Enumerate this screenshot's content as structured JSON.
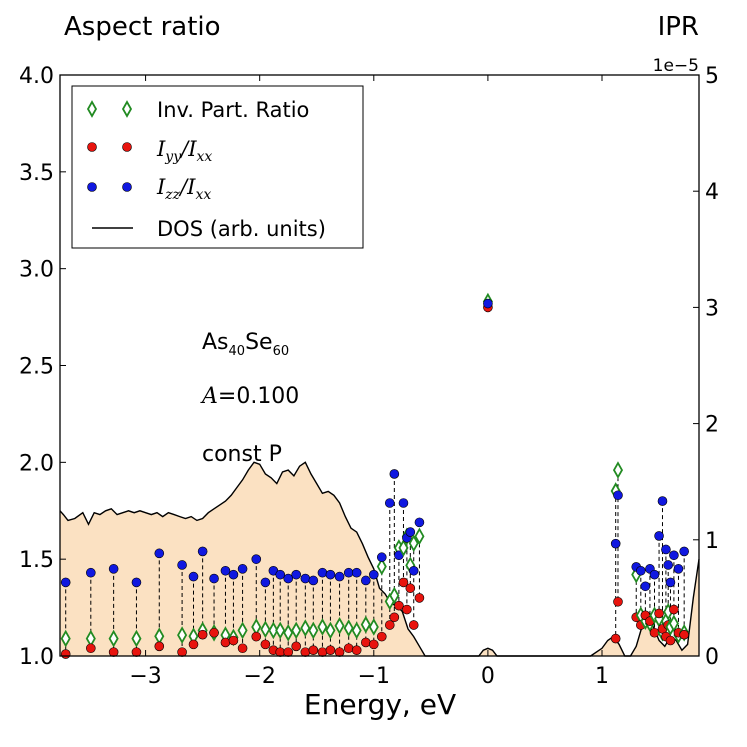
{
  "chart_data": {
    "type": "scatter",
    "title_left": "Aspect ratio",
    "title_right": "IPR",
    "xlabel": "Energy, eV",
    "xlim": [
      -3.75,
      1.85
    ],
    "ylim_left": [
      1.0,
      4.0
    ],
    "ylim_right": [
      0,
      5
    ],
    "right_axis_offset": "1e−5",
    "x_ticks": [
      -3,
      -2,
      -1,
      0,
      1
    ],
    "x_tick_labels": [
      "−3",
      "−2",
      "−1",
      "0",
      "1"
    ],
    "y_left_ticks": [
      1.0,
      1.5,
      2.0,
      2.5,
      3.0,
      3.5,
      4.0
    ],
    "y_left_tick_labels": [
      "1.0",
      "1.5",
      "2.0",
      "2.5",
      "3.0",
      "3.5",
      "4.0"
    ],
    "y_right_ticks": [
      0,
      1,
      2,
      3,
      4,
      5
    ],
    "y_right_tick_labels": [
      "0",
      "1",
      "2",
      "3",
      "4",
      "5"
    ],
    "annotations": {
      "material_base1": "As",
      "material_sub1": "40",
      "material_base2": "Se",
      "material_sub2": "60",
      "amp_var": "A",
      "amp_value": "=0.100",
      "condition": "const P"
    },
    "legend": {
      "position": "top-left",
      "ipr_label": "Inv. Part. Ratio",
      "iyy_var1": "I",
      "iyy_sub1": "yy",
      "iyy_slash": "/",
      "iyy_var2": "I",
      "iyy_sub2": "xx",
      "izz_var1": "I",
      "izz_sub1": "zz",
      "izz_slash": "/",
      "izz_var2": "I",
      "izz_sub2": "xx",
      "dos_label": "DOS (arb. units)"
    },
    "colors": {
      "ipr": "#228B22",
      "iyy": "#e8140e",
      "izz": "#1018e0",
      "dos_fill": "#fbe1c2",
      "dos_line": "#000000"
    },
    "states": [
      {
        "e": -3.7,
        "ipr": 0.15,
        "iyy": 1.01,
        "izz": 1.38
      },
      {
        "e": -3.48,
        "ipr": 0.15,
        "iyy": 1.04,
        "izz": 1.43
      },
      {
        "e": -3.28,
        "ipr": 0.15,
        "iyy": 1.02,
        "izz": 1.45
      },
      {
        "e": -3.08,
        "ipr": 0.15,
        "iyy": 1.02,
        "izz": 1.38
      },
      {
        "e": -2.88,
        "ipr": 0.17,
        "iyy": 1.05,
        "izz": 1.53
      },
      {
        "e": -2.68,
        "ipr": 0.18,
        "iyy": 1.02,
        "izz": 1.47
      },
      {
        "e": -2.58,
        "ipr": 0.17,
        "iyy": 1.06,
        "izz": 1.41
      },
      {
        "e": -2.5,
        "ipr": 0.22,
        "iyy": 1.11,
        "izz": 1.54
      },
      {
        "e": -2.4,
        "ipr": 0.2,
        "iyy": 1.12,
        "izz": 1.4
      },
      {
        "e": -2.3,
        "ipr": 0.18,
        "iyy": 1.07,
        "izz": 1.44
      },
      {
        "e": -2.23,
        "ipr": 0.16,
        "iyy": 1.08,
        "izz": 1.42
      },
      {
        "e": -2.15,
        "ipr": 0.22,
        "iyy": 1.04,
        "izz": 1.45
      },
      {
        "e": -2.03,
        "ipr": 0.25,
        "iyy": 1.1,
        "izz": 1.5
      },
      {
        "e": -1.95,
        "ipr": 0.23,
        "iyy": 1.06,
        "izz": 1.38
      },
      {
        "e": -1.88,
        "ipr": 0.22,
        "iyy": 1.03,
        "izz": 1.44
      },
      {
        "e": -1.82,
        "ipr": 0.22,
        "iyy": 1.02,
        "izz": 1.42
      },
      {
        "e": -1.75,
        "ipr": 0.2,
        "iyy": 1.02,
        "izz": 1.4
      },
      {
        "e": -1.68,
        "ipr": 0.22,
        "iyy": 1.05,
        "izz": 1.42
      },
      {
        "e": -1.6,
        "ipr": 0.24,
        "iyy": 1.02,
        "izz": 1.4
      },
      {
        "e": -1.53,
        "ipr": 0.22,
        "iyy": 1.03,
        "izz": 1.39
      },
      {
        "e": -1.45,
        "ipr": 0.25,
        "iyy": 1.02,
        "izz": 1.43
      },
      {
        "e": -1.38,
        "ipr": 0.22,
        "iyy": 1.03,
        "izz": 1.42
      },
      {
        "e": -1.3,
        "ipr": 0.26,
        "iyy": 1.02,
        "izz": 1.41
      },
      {
        "e": -1.22,
        "ipr": 0.24,
        "iyy": 1.04,
        "izz": 1.43
      },
      {
        "e": -1.15,
        "ipr": 0.22,
        "iyy": 1.03,
        "izz": 1.43
      },
      {
        "e": -1.07,
        "ipr": 0.27,
        "iyy": 1.07,
        "izz": 1.39
      },
      {
        "e": -1.0,
        "ipr": 0.25,
        "iyy": 1.06,
        "izz": 1.42
      },
      {
        "e": -0.93,
        "ipr": 0.77,
        "iyy": 1.1,
        "izz": 1.51
      },
      {
        "e": -0.86,
        "ipr": 0.47,
        "iyy": 1.16,
        "izz": 1.79
      },
      {
        "e": -0.82,
        "ipr": 0.52,
        "iyy": 1.2,
        "izz": 1.94
      },
      {
        "e": -0.78,
        "ipr": 0.93,
        "iyy": 1.26,
        "izz": 1.52
      },
      {
        "e": -0.74,
        "ipr": 0.93,
        "iyy": 1.38,
        "izz": 1.79
      },
      {
        "e": -0.71,
        "ipr": 1.03,
        "iyy": 1.24,
        "izz": 1.61
      },
      {
        "e": -0.68,
        "ipr": 0.78,
        "iyy": 1.35,
        "izz": 1.64
      },
      {
        "e": -0.65,
        "ipr": 0.97,
        "iyy": 1.16,
        "izz": 1.44
      },
      {
        "e": -0.6,
        "ipr": 1.03,
        "iyy": 1.3,
        "izz": 1.69
      },
      {
        "e": 0.0,
        "ipr": 3.05,
        "iyy": 2.8,
        "izz": 2.82
      },
      {
        "e": 1.12,
        "ipr": 1.42,
        "iyy": 1.09,
        "izz": 1.58
      },
      {
        "e": 1.14,
        "ipr": 1.6,
        "iyy": 1.28,
        "izz": 1.83
      },
      {
        "e": 1.3,
        "ipr": 0.7,
        "iyy": 1.2,
        "izz": 1.46
      },
      {
        "e": 1.34,
        "ipr": 0.35,
        "iyy": 1.16,
        "izz": 1.44
      },
      {
        "e": 1.38,
        "ipr": 0.3,
        "iyy": 1.21,
        "izz": 1.36
      },
      {
        "e": 1.42,
        "ipr": 0.28,
        "iyy": 1.18,
        "izz": 1.45
      },
      {
        "e": 1.46,
        "ipr": 0.35,
        "iyy": 1.12,
        "izz": 1.42
      },
      {
        "e": 1.5,
        "ipr": 0.32,
        "iyy": 1.22,
        "izz": 1.62
      },
      {
        "e": 1.53,
        "ipr": 0.2,
        "iyy": 1.14,
        "izz": 1.8
      },
      {
        "e": 1.56,
        "ipr": 0.3,
        "iyy": 1.1,
        "izz": 1.55
      },
      {
        "e": 1.58,
        "ipr": 0.38,
        "iyy": 1.16,
        "izz": 1.47
      },
      {
        "e": 1.6,
        "ipr": 0.25,
        "iyy": 1.08,
        "izz": 1.38
      },
      {
        "e": 1.63,
        "ipr": 0.28,
        "iyy": 1.24,
        "izz": 1.52
      },
      {
        "e": 1.67,
        "ipr": 0.18,
        "iyy": 1.12,
        "izz": 1.45
      },
      {
        "e": 1.72,
        "ipr": 0.2,
        "iyy": 1.11,
        "izz": 1.54
      }
    ],
    "dos_curve": {
      "e": [
        -3.75,
        -3.72,
        -3.68,
        -3.62,
        -3.55,
        -3.5,
        -3.45,
        -3.4,
        -3.35,
        -3.3,
        -3.25,
        -3.2,
        -3.15,
        -3.1,
        -3.05,
        -3.0,
        -2.95,
        -2.9,
        -2.85,
        -2.8,
        -2.75,
        -2.7,
        -2.65,
        -2.6,
        -2.55,
        -2.5,
        -2.45,
        -2.4,
        -2.35,
        -2.3,
        -2.25,
        -2.2,
        -2.15,
        -2.1,
        -2.05,
        -2.0,
        -1.95,
        -1.9,
        -1.85,
        -1.8,
        -1.75,
        -1.7,
        -1.65,
        -1.6,
        -1.55,
        -1.5,
        -1.45,
        -1.4,
        -1.35,
        -1.3,
        -1.25,
        -1.2,
        -1.15,
        -1.1,
        -1.05,
        -1.0,
        -0.95,
        -0.9,
        -0.85,
        -0.8,
        -0.75,
        -0.7,
        -0.65,
        -0.6,
        -0.55,
        -0.5,
        -0.4,
        -0.2,
        -0.08,
        -0.04,
        0.0,
        0.04,
        0.08,
        0.2,
        0.9,
        1.0,
        1.05,
        1.1,
        1.15,
        1.2,
        1.25,
        1.3,
        1.35,
        1.4,
        1.45,
        1.5,
        1.55,
        1.6,
        1.65,
        1.7,
        1.75,
        1.8,
        1.85
      ],
      "value": [
        1.75,
        1.73,
        1.7,
        1.71,
        1.74,
        1.68,
        1.74,
        1.73,
        1.75,
        1.76,
        1.73,
        1.74,
        1.75,
        1.74,
        1.75,
        1.74,
        1.73,
        1.74,
        1.72,
        1.74,
        1.73,
        1.72,
        1.71,
        1.72,
        1.7,
        1.71,
        1.74,
        1.76,
        1.78,
        1.8,
        1.83,
        1.87,
        1.91,
        1.96,
        2.0,
        1.99,
        1.94,
        1.92,
        1.89,
        1.95,
        1.96,
        1.93,
        1.98,
        2.0,
        1.94,
        1.89,
        1.84,
        1.85,
        1.83,
        1.79,
        1.72,
        1.66,
        1.64,
        1.58,
        1.51,
        1.45,
        1.35,
        1.32,
        1.27,
        1.26,
        1.23,
        1.14,
        1.1,
        1.05,
        1.0,
        1.0,
        1.0,
        1.0,
        1.0,
        1.03,
        1.04,
        1.03,
        1.0,
        1.0,
        1.0,
        1.04,
        1.08,
        1.1,
        1.06,
        1.0,
        1.0,
        1.05,
        1.15,
        1.19,
        1.15,
        1.08,
        1.05,
        1.1,
        1.08,
        1.03,
        1.06,
        1.3,
        1.5
      ]
    }
  }
}
